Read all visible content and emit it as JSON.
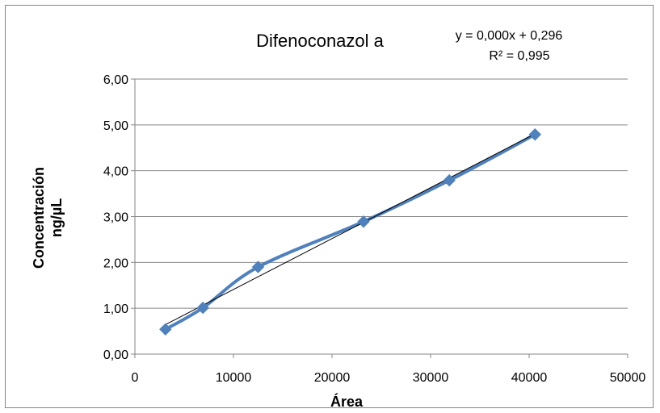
{
  "chart_data": {
    "type": "scatter",
    "title": "Difenoconazol a",
    "xlabel": "Área",
    "ylabel_lines": [
      "Concentración",
      "ng/µL"
    ],
    "trendline": {
      "equation": "y = 0,000x + 0,296",
      "r_squared": "R² = 0,995",
      "type": "linear",
      "color": "#000000"
    },
    "xlim": [
      0,
      50000
    ],
    "ylim": [
      0,
      6
    ],
    "x_ticks": [
      0,
      10000,
      20000,
      30000,
      40000,
      50000
    ],
    "x_tick_labels": [
      "0",
      "10000",
      "20000",
      "30000",
      "40000",
      "50000"
    ],
    "y_ticks": [
      0,
      1,
      2,
      3,
      4,
      5,
      6
    ],
    "y_tick_labels": [
      "0,00",
      "1,00",
      "2,00",
      "3,00",
      "4,00",
      "5,00",
      "6,00"
    ],
    "grid": {
      "horizontal": true,
      "vertical": false,
      "color": "#868686"
    },
    "series": [
      {
        "marker": "diamond",
        "smooth_line": true,
        "color": "#4F81BD",
        "x": [
          3100,
          6900,
          12500,
          23200,
          31900,
          40600
        ],
        "y": [
          0.54,
          1.01,
          1.9,
          2.89,
          3.79,
          4.79
        ]
      }
    ]
  }
}
